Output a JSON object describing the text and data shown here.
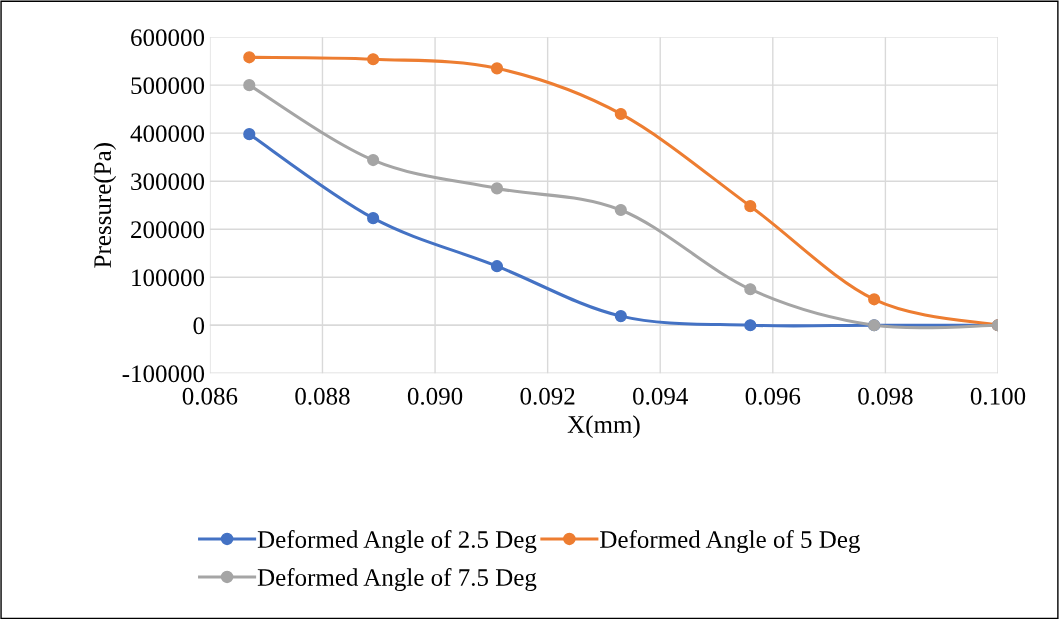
{
  "chart_data": {
    "type": "line",
    "xlabel": "X(mm)",
    "ylabel": "Pressure(Pa)",
    "x": [
      0.0867,
      0.0889,
      0.0911,
      0.0933,
      0.0956,
      0.0978,
      0.1
    ],
    "series": [
      {
        "name": "Deformed Angle of 2.5 Deg",
        "color": "#4472c4",
        "values": [
          398000,
          223000,
          123000,
          19000,
          0,
          0,
          0
        ]
      },
      {
        "name": "Deformed Angle of 5 Deg",
        "color": "#ed7d31",
        "values": [
          558000,
          554000,
          535000,
          440000,
          248000,
          54000,
          0
        ]
      },
      {
        "name": "Deformed Angle of 7.5 Deg",
        "color": "#a5a5a5",
        "values": [
          500000,
          344000,
          285000,
          240000,
          75000,
          0,
          0
        ]
      }
    ],
    "xlim": [
      0.086,
      0.1
    ],
    "ylim": [
      -100000,
      600000
    ],
    "xticks": [
      {
        "value": 0.086,
        "label": "0.086"
      },
      {
        "value": 0.088,
        "label": "0.088"
      },
      {
        "value": 0.09,
        "label": "0.090"
      },
      {
        "value": 0.092,
        "label": "0.092"
      },
      {
        "value": 0.094,
        "label": "0.094"
      },
      {
        "value": 0.096,
        "label": "0.096"
      },
      {
        "value": 0.098,
        "label": "0.098"
      },
      {
        "value": 0.1,
        "label": "0.100"
      }
    ],
    "yticks": [
      -100000,
      0,
      100000,
      200000,
      300000,
      400000,
      500000,
      600000
    ],
    "grid": true,
    "legend": "bottom",
    "marker": "circle",
    "line_style": "solid"
  }
}
